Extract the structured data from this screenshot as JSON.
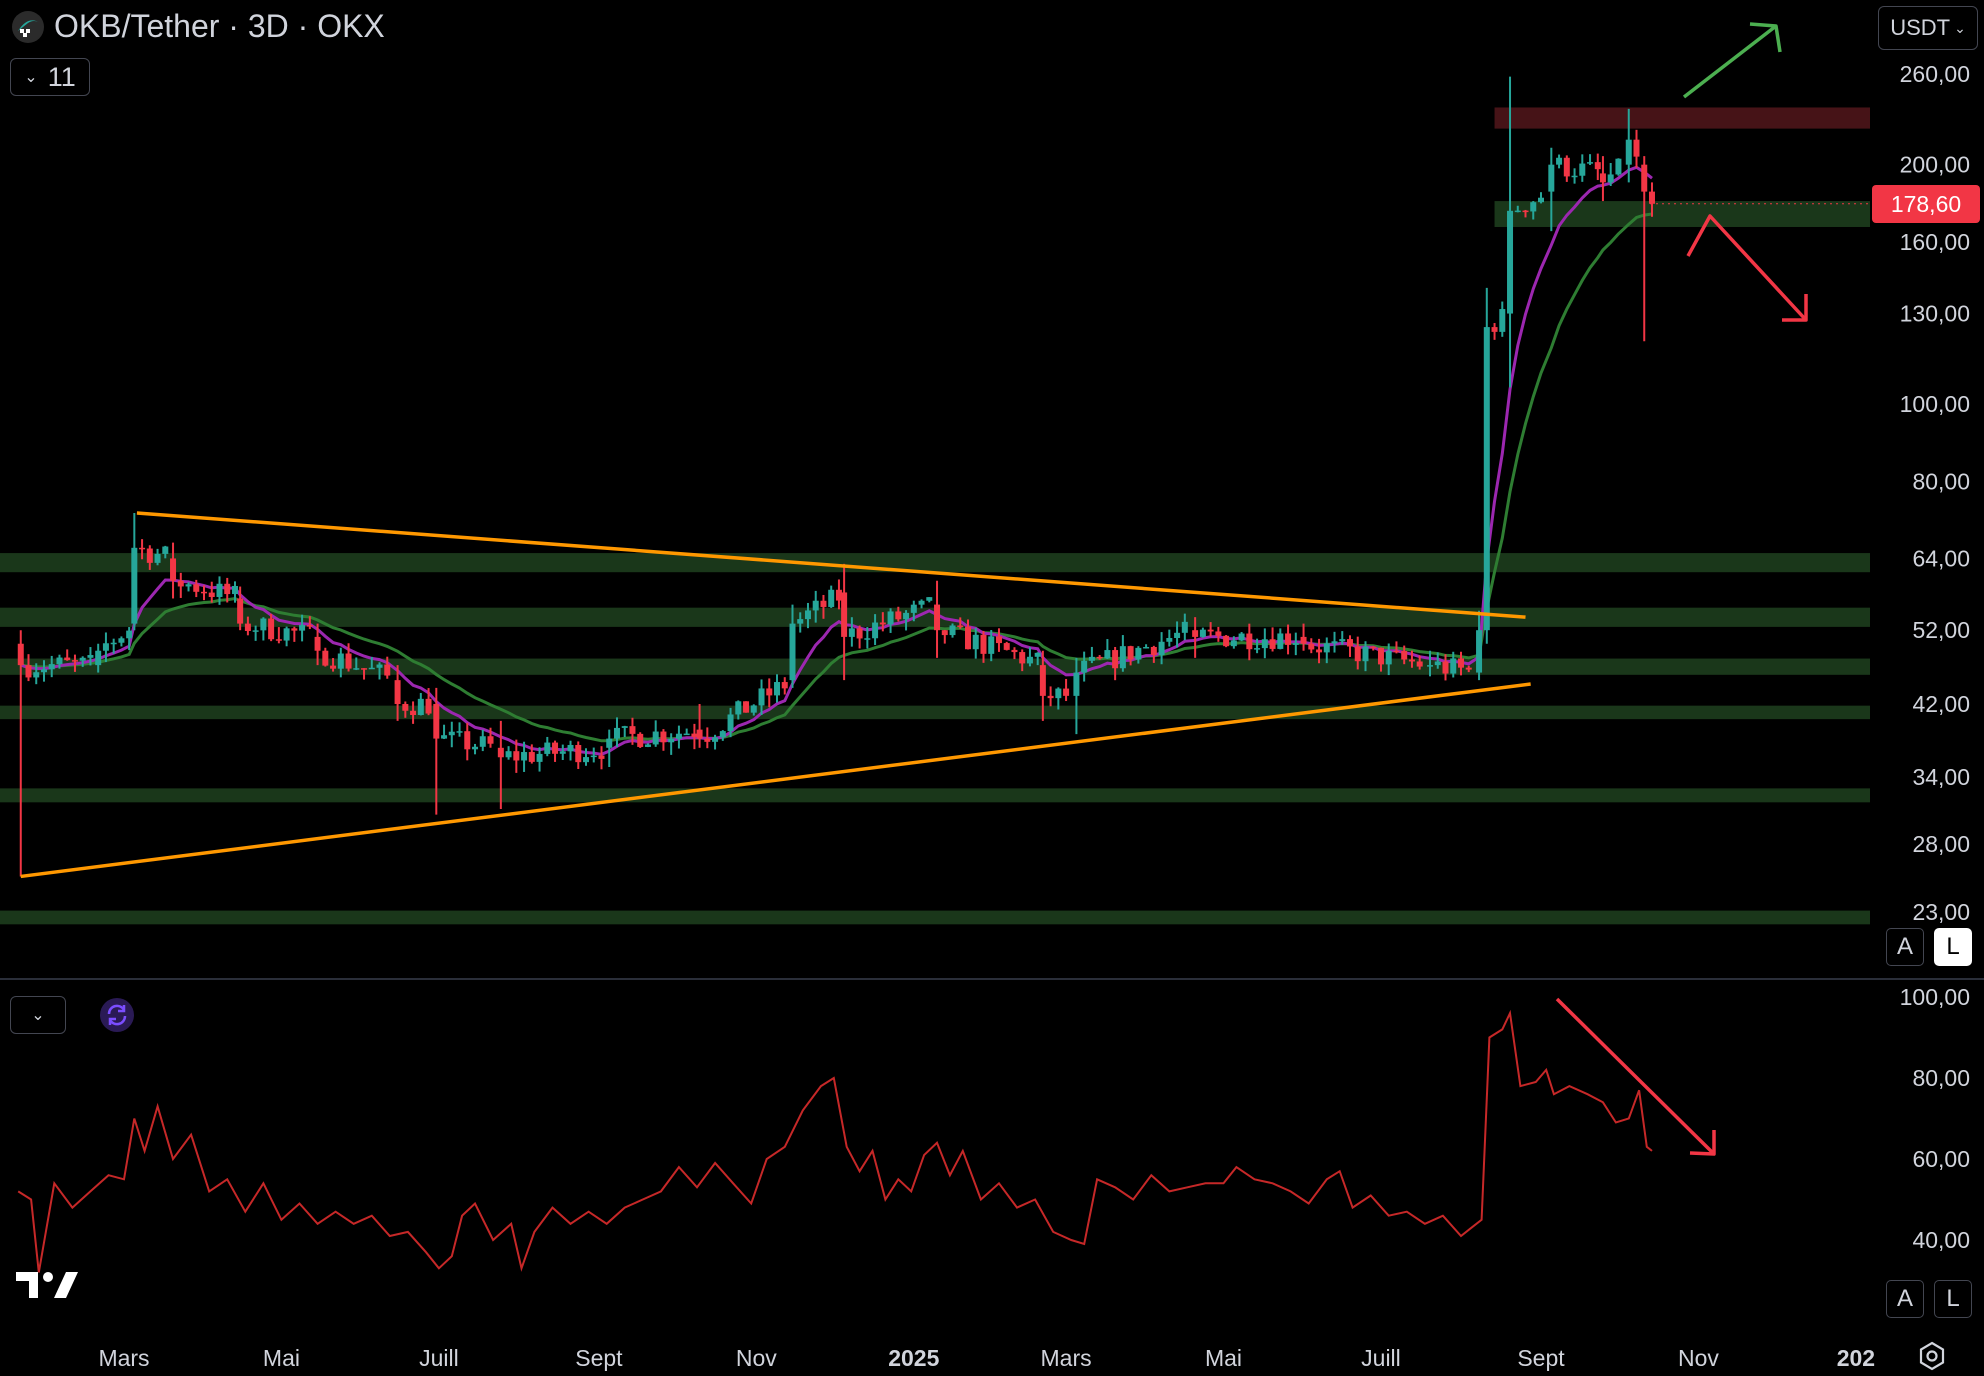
{
  "header": {
    "title": "OKB/Tether · 3D · OKX",
    "indicator_count": "11",
    "currency": "USDT"
  },
  "price_axis": {
    "ticks": [
      "260,00",
      "200,00",
      "160,00",
      "130,00",
      "100,00",
      "80,00",
      "64,00",
      "52,00",
      "42,00",
      "34,00",
      "28,00",
      "23,00"
    ],
    "tick_values": [
      260,
      200,
      160,
      130,
      100,
      80,
      64,
      52,
      42,
      34,
      28,
      23
    ],
    "last_price_label": "178,60",
    "last_price": 178.6,
    "scale": "log"
  },
  "indicator_axis": {
    "ticks": [
      "100,00",
      "80,00",
      "60,00",
      "40,00"
    ],
    "tick_values": [
      100,
      80,
      60,
      40
    ]
  },
  "time_axis": {
    "labels": [
      "Mars",
      "Mai",
      "Juill",
      "Sept",
      "Nov",
      "2025",
      "Mars",
      "Mai",
      "Juill",
      "Sept",
      "Nov",
      "202"
    ],
    "label_dates": [
      "2024-03-01",
      "2024-05-01",
      "2024-07-01",
      "2024-09-01",
      "2024-11-01",
      "2025-01-01",
      "2025-03-01",
      "2025-05-01",
      "2025-07-01",
      "2025-09-01",
      "2025-11-01",
      "2026-01-01"
    ],
    "bold": [
      false,
      false,
      false,
      false,
      false,
      true,
      false,
      false,
      false,
      false,
      false,
      true
    ]
  },
  "buttons": {
    "auto": "A",
    "log": "L"
  },
  "colors": {
    "up": "#26a69a",
    "down": "#f23645",
    "ema_fast": "#9c27b0",
    "ema_slow": "#2e7d32",
    "trendline": "#ff9800",
    "support_zone": "#1b3a1b",
    "resistance_zone": "#4a1418",
    "rsi": "#c62828",
    "arrow_up": "#4caf50",
    "arrow_down": "#f23645"
  },
  "chart_data": [
    {
      "type": "candlestick",
      "title": "OKB/Tether · 3D · OKX",
      "x_range": [
        "2024-01-20",
        "2026-01-15"
      ],
      "ylim": [
        21,
        290
      ],
      "y_scale": "log",
      "series": [
        {
          "name": "OKB/Tether",
          "ohlc_samples": [
            {
              "date": "2024-01-21",
              "o": 50,
              "h": 52,
              "l": 25.5,
              "c": 47
            },
            {
              "date": "2024-02-20",
              "o": 47,
              "h": 50,
              "l": 46,
              "c": 49
            },
            {
              "date": "2024-03-05",
              "o": 53,
              "h": 73,
              "l": 52,
              "c": 66
            },
            {
              "date": "2024-03-20",
              "o": 64,
              "h": 67,
              "l": 57,
              "c": 60
            },
            {
              "date": "2024-04-15",
              "o": 57,
              "h": 59,
              "l": 52,
              "c": 53
            },
            {
              "date": "2024-05-15",
              "o": 51,
              "h": 53,
              "l": 47,
              "c": 49
            },
            {
              "date": "2024-06-15",
              "o": 45,
              "h": 47,
              "l": 40,
              "c": 42
            },
            {
              "date": "2024-06-30",
              "o": 42,
              "h": 44,
              "l": 30.5,
              "c": 38
            },
            {
              "date": "2024-07-25",
              "o": 37,
              "h": 40,
              "l": 31,
              "c": 36
            },
            {
              "date": "2024-09-05",
              "o": 37,
              "h": 39,
              "l": 35,
              "c": 38
            },
            {
              "date": "2024-10-10",
              "o": 39,
              "h": 42,
              "l": 37,
              "c": 38
            },
            {
              "date": "2024-11-15",
              "o": 45,
              "h": 56,
              "l": 44,
              "c": 53
            },
            {
              "date": "2024-12-05",
              "o": 58,
              "h": 63,
              "l": 45,
              "c": 51
            },
            {
              "date": "2025-01-10",
              "o": 56,
              "h": 60,
              "l": 48,
              "c": 52
            },
            {
              "date": "2025-02-20",
              "o": 47,
              "h": 49,
              "l": 40,
              "c": 43
            },
            {
              "date": "2025-03-05",
              "o": 43,
              "h": 48,
              "l": 38.5,
              "c": 46
            },
            {
              "date": "2025-04-20",
              "o": 52,
              "h": 54,
              "l": 48,
              "c": 51
            },
            {
              "date": "2025-06-01",
              "o": 51,
              "h": 53,
              "l": 49,
              "c": 50
            },
            {
              "date": "2025-07-20",
              "o": 47,
              "h": 49,
              "l": 45.5,
              "c": 47
            },
            {
              "date": "2025-08-08",
              "o": 46,
              "h": 55,
              "l": 45,
              "c": 52
            },
            {
              "date": "2025-08-11",
              "o": 52,
              "h": 140,
              "l": 50,
              "c": 125
            },
            {
              "date": "2025-08-20",
              "o": 130,
              "h": 258,
              "l": 105,
              "c": 175
            },
            {
              "date": "2025-09-05",
              "o": 185,
              "h": 210,
              "l": 165,
              "c": 200
            },
            {
              "date": "2025-09-25",
              "o": 195,
              "h": 205,
              "l": 180,
              "c": 190
            },
            {
              "date": "2025-10-05",
              "o": 200,
              "h": 235,
              "l": 190,
              "c": 215
            },
            {
              "date": "2025-10-11",
              "o": 200,
              "h": 205,
              "l": 120,
              "c": 185
            },
            {
              "date": "2025-10-14",
              "o": 185,
              "h": 190,
              "l": 172,
              "c": 178.6
            }
          ]
        },
        {
          "name": "EMA fast",
          "color": "#9c27b0"
        },
        {
          "name": "EMA slow",
          "color": "#2e7d32"
        }
      ],
      "horizontal_zones": [
        {
          "kind": "support",
          "from": 61.5,
          "to": 65
        },
        {
          "kind": "support",
          "from": 52.5,
          "to": 55.5
        },
        {
          "kind": "support",
          "from": 45.7,
          "to": 47.9
        },
        {
          "kind": "support",
          "from": 40.2,
          "to": 41.8
        },
        {
          "kind": "support",
          "from": 31.6,
          "to": 32.9
        },
        {
          "kind": "support",
          "from": 22.2,
          "to": 23.1
        },
        {
          "kind": "support",
          "from": 167,
          "to": 180
        },
        {
          "kind": "resistance",
          "from": 222,
          "to": 236
        }
      ],
      "trendlines": [
        {
          "name": "triangle-upper",
          "from": {
            "date": "2024-03-06",
            "value": 73
          },
          "to": {
            "date": "2025-08-26",
            "value": 54
          }
        },
        {
          "name": "triangle-lower",
          "from": {
            "date": "2024-01-21",
            "value": 25.5
          },
          "to": {
            "date": "2025-08-28",
            "value": 44.5
          }
        }
      ],
      "annotations": [
        {
          "type": "arrow",
          "direction": "up",
          "color": "#4caf50"
        },
        {
          "type": "arrow",
          "direction": "down",
          "color": "#f23645"
        }
      ]
    },
    {
      "type": "line",
      "x_range": [
        "2024-01-20",
        "2026-01-15"
      ],
      "ylim": [
        28,
        106
      ],
      "series": [
        {
          "values": [
            [
              "2024-01-20",
              52
            ],
            [
              "2024-01-25",
              50
            ],
            [
              "2024-01-28",
              32
            ],
            [
              "2024-02-03",
              54
            ],
            [
              "2024-02-10",
              48
            ],
            [
              "2024-02-17",
              52
            ],
            [
              "2024-02-24",
              56
            ],
            [
              "2024-03-01",
              55
            ],
            [
              "2024-03-05",
              70
            ],
            [
              "2024-03-09",
              62
            ],
            [
              "2024-03-14",
              73
            ],
            [
              "2024-03-20",
              60
            ],
            [
              "2024-03-27",
              66
            ],
            [
              "2024-04-03",
              52
            ],
            [
              "2024-04-10",
              55
            ],
            [
              "2024-04-17",
              47
            ],
            [
              "2024-04-24",
              54
            ],
            [
              "2024-05-01",
              45
            ],
            [
              "2024-05-08",
              49
            ],
            [
              "2024-05-15",
              44
            ],
            [
              "2024-05-22",
              47
            ],
            [
              "2024-05-29",
              44
            ],
            [
              "2024-06-05",
              46
            ],
            [
              "2024-06-12",
              41
            ],
            [
              "2024-06-19",
              42
            ],
            [
              "2024-06-26",
              37
            ],
            [
              "2024-07-01",
              33
            ],
            [
              "2024-07-06",
              36
            ],
            [
              "2024-07-10",
              46
            ],
            [
              "2024-07-15",
              49
            ],
            [
              "2024-07-22",
              40
            ],
            [
              "2024-07-29",
              44
            ],
            [
              "2024-08-02",
              33
            ],
            [
              "2024-08-07",
              42
            ],
            [
              "2024-08-14",
              48
            ],
            [
              "2024-08-21",
              44
            ],
            [
              "2024-08-28",
              47
            ],
            [
              "2024-09-04",
              44
            ],
            [
              "2024-09-11",
              48
            ],
            [
              "2024-09-18",
              50
            ],
            [
              "2024-09-25",
              52
            ],
            [
              "2024-10-02",
              58
            ],
            [
              "2024-10-09",
              53
            ],
            [
              "2024-10-16",
              59
            ],
            [
              "2024-10-23",
              54
            ],
            [
              "2024-10-30",
              49
            ],
            [
              "2024-11-05",
              60
            ],
            [
              "2024-11-12",
              63
            ],
            [
              "2024-11-19",
              72
            ],
            [
              "2024-11-26",
              78
            ],
            [
              "2024-12-01",
              80
            ],
            [
              "2024-12-06",
              63
            ],
            [
              "2024-12-11",
              57
            ],
            [
              "2024-12-16",
              62
            ],
            [
              "2024-12-21",
              50
            ],
            [
              "2024-12-26",
              55
            ],
            [
              "2024-12-31",
              52
            ],
            [
              "2025-01-05",
              61
            ],
            [
              "2025-01-10",
              64
            ],
            [
              "2025-01-15",
              56
            ],
            [
              "2025-01-20",
              62
            ],
            [
              "2025-01-27",
              50
            ],
            [
              "2025-02-03",
              54
            ],
            [
              "2025-02-10",
              48
            ],
            [
              "2025-02-17",
              50
            ],
            [
              "2025-02-24",
              42
            ],
            [
              "2025-03-03",
              40
            ],
            [
              "2025-03-08",
              39
            ],
            [
              "2025-03-13",
              55
            ],
            [
              "2025-03-20",
              53
            ],
            [
              "2025-03-27",
              50
            ],
            [
              "2025-04-03",
              56
            ],
            [
              "2025-04-10",
              52
            ],
            [
              "2025-04-17",
              53
            ],
            [
              "2025-04-24",
              54
            ],
            [
              "2025-05-01",
              54
            ],
            [
              "2025-05-06",
              58
            ],
            [
              "2025-05-13",
              55
            ],
            [
              "2025-05-20",
              54
            ],
            [
              "2025-05-27",
              52
            ],
            [
              "2025-06-03",
              49
            ],
            [
              "2025-06-10",
              55
            ],
            [
              "2025-06-15",
              57
            ],
            [
              "2025-06-20",
              48
            ],
            [
              "2025-06-27",
              51
            ],
            [
              "2025-07-04",
              46
            ],
            [
              "2025-07-11",
              47
            ],
            [
              "2025-07-18",
              44
            ],
            [
              "2025-07-25",
              46
            ],
            [
              "2025-08-01",
              41
            ],
            [
              "2025-08-05",
              43
            ],
            [
              "2025-08-09",
              45
            ],
            [
              "2025-08-12",
              90
            ],
            [
              "2025-08-17",
              92
            ],
            [
              "2025-08-20",
              96
            ],
            [
              "2025-08-24",
              78
            ],
            [
              "2025-08-30",
              79
            ],
            [
              "2025-09-03",
              82
            ],
            [
              "2025-09-06",
              76
            ],
            [
              "2025-09-12",
              78
            ],
            [
              "2025-09-19",
              76
            ],
            [
              "2025-09-25",
              74
            ],
            [
              "2025-09-30",
              69
            ],
            [
              "2025-10-05",
              70
            ],
            [
              "2025-10-09",
              77
            ],
            [
              "2025-10-12",
              63
            ],
            [
              "2025-10-14",
              62
            ]
          ]
        }
      ],
      "annotations": [
        {
          "type": "arrow",
          "direction": "down",
          "color": "#f23645"
        }
      ]
    }
  ]
}
